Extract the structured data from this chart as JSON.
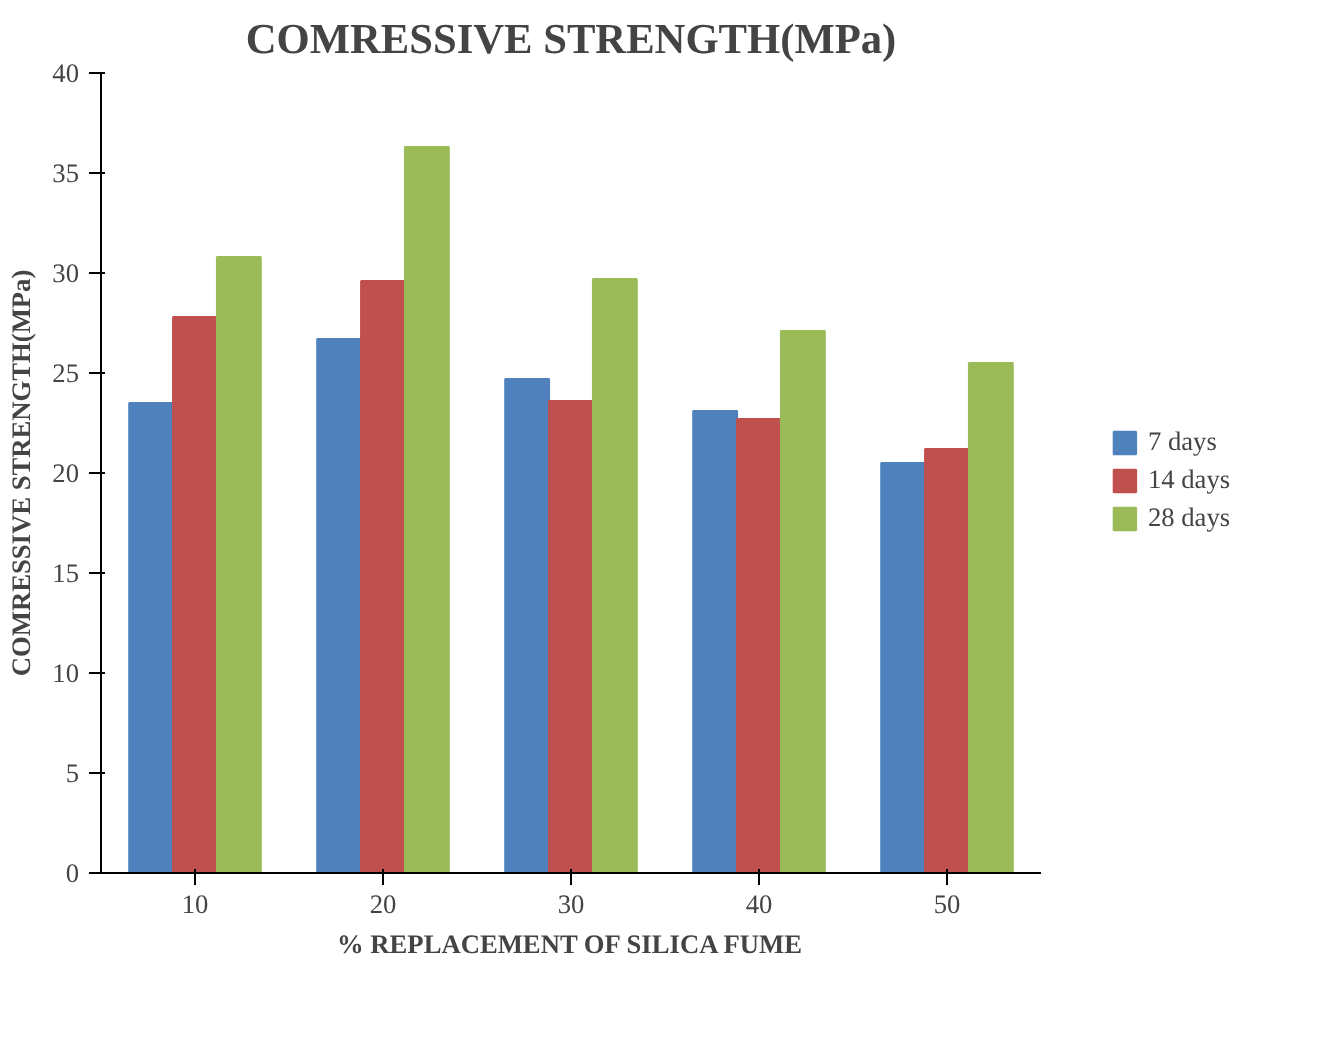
{
  "chart_data": {
    "type": "bar",
    "title": "COMRESSIVE STRENGTH(MPa)",
    "xlabel": "% REPLACEMENT OF SILICA FUME",
    "ylabel": "COMRESSIVE STRENGTH(MPa)",
    "categories": [
      "10",
      "20",
      "30",
      "40",
      "50"
    ],
    "series": [
      {
        "name": "7 days",
        "color": "#4f81bd",
        "values": [
          23.5,
          26.7,
          24.7,
          23.1,
          20.5
        ]
      },
      {
        "name": "14 days",
        "color": "#c0504d",
        "values": [
          27.8,
          29.6,
          23.6,
          22.7,
          21.2
        ]
      },
      {
        "name": "28 days",
        "color": "#9bbb59",
        "values": [
          30.8,
          36.3,
          29.7,
          27.1,
          25.5
        ]
      }
    ],
    "ylim": [
      0,
      40
    ],
    "yticks": [
      0,
      5,
      10,
      15,
      20,
      25,
      30,
      35,
      40
    ],
    "grid": false,
    "legend": "right"
  }
}
